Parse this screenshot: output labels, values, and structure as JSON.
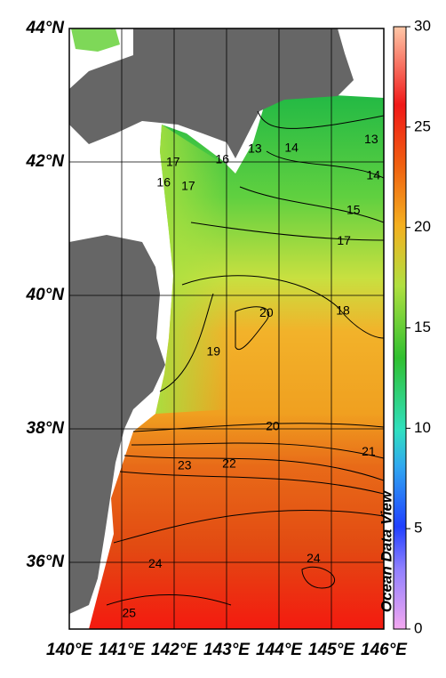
{
  "map": {
    "xlim": [
      140,
      146
    ],
    "ylim": [
      35,
      44
    ],
    "xticks": [
      {
        "value": 140,
        "label": "140°E"
      },
      {
        "value": 141,
        "label": "141°E"
      },
      {
        "value": 142,
        "label": "142°E"
      },
      {
        "value": 143,
        "label": "143°E"
      },
      {
        "value": 144,
        "label": "144°E"
      },
      {
        "value": 145,
        "label": "145°E"
      },
      {
        "value": 146,
        "label": "146°E"
      }
    ],
    "yticks": [
      {
        "value": 36,
        "label": "36°N"
      },
      {
        "value": 38,
        "label": "38°N"
      },
      {
        "value": 40,
        "label": "40°N"
      },
      {
        "value": 42,
        "label": "42°N"
      },
      {
        "value": 44,
        "label": "44°N"
      }
    ],
    "colorbar": {
      "lim": [
        0,
        30
      ],
      "ticks": [
        0,
        5,
        10,
        15,
        20,
        25,
        30
      ]
    },
    "watermark": "Ocean Data View",
    "contour_labels": [
      {
        "value": 13,
        "lon": 143.54,
        "lat": 42.19
      },
      {
        "value": 14,
        "lon": 144.24,
        "lat": 42.2
      },
      {
        "value": 13,
        "lon": 145.76,
        "lat": 42.33
      },
      {
        "value": 14,
        "lon": 145.8,
        "lat": 41.79
      },
      {
        "value": 15,
        "lon": 145.42,
        "lat": 41.27
      },
      {
        "value": 17,
        "lon": 145.24,
        "lat": 40.81
      },
      {
        "value": 16,
        "lon": 142.92,
        "lat": 42.03
      },
      {
        "value": 17,
        "lon": 141.98,
        "lat": 41.99
      },
      {
        "value": 17,
        "lon": 142.27,
        "lat": 41.63
      },
      {
        "value": 16,
        "lon": 141.8,
        "lat": 41.68
      },
      {
        "value": 20,
        "lon": 143.76,
        "lat": 39.73
      },
      {
        "value": 18,
        "lon": 145.22,
        "lat": 39.76
      },
      {
        "value": 19,
        "lon": 142.75,
        "lat": 39.15
      },
      {
        "value": 20,
        "lon": 143.88,
        "lat": 38.03
      },
      {
        "value": 21,
        "lon": 145.71,
        "lat": 37.65
      },
      {
        "value": 23,
        "lon": 142.2,
        "lat": 37.44
      },
      {
        "value": 22,
        "lon": 143.05,
        "lat": 37.47
      },
      {
        "value": 24,
        "lon": 141.64,
        "lat": 35.97
      },
      {
        "value": 24,
        "lon": 144.66,
        "lat": 36.05
      },
      {
        "value": 25,
        "lon": 141.14,
        "lat": 35.23
      }
    ]
  }
}
